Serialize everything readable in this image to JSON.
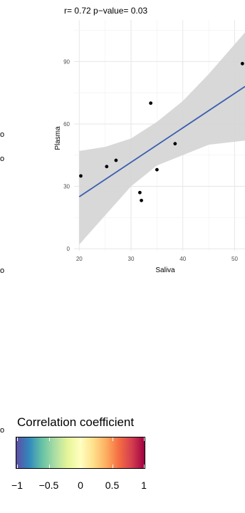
{
  "chart_data": {
    "type": "scatter",
    "title": "r= 0.72  p−value= 0.03",
    "xlabel": "Saliva",
    "ylabel": "Plasma",
    "xlim": [
      19,
      52
    ],
    "ylim": [
      -1,
      110
    ],
    "xticks": [
      20,
      30,
      40,
      50
    ],
    "yticks": [
      0,
      30,
      60,
      90
    ],
    "grid": true,
    "points": [
      {
        "x": 20.3,
        "y": 35
      },
      {
        "x": 25.3,
        "y": 39.5
      },
      {
        "x": 27.1,
        "y": 42.5
      },
      {
        "x": 31.7,
        "y": 27
      },
      {
        "x": 32.0,
        "y": 23.2
      },
      {
        "x": 33.8,
        "y": 70
      },
      {
        "x": 35.0,
        "y": 38
      },
      {
        "x": 38.5,
        "y": 50.5
      },
      {
        "x": 51.5,
        "y": 89
      }
    ],
    "fit_line": {
      "x": [
        20,
        52
      ],
      "y": [
        25,
        78
      ],
      "color": "#3a5fb0"
    },
    "confidence_band": {
      "x": [
        20,
        25,
        30,
        35,
        40,
        45,
        52
      ],
      "upper": [
        47,
        49,
        53,
        61,
        71,
        84,
        104
      ],
      "lower": [
        2,
        16,
        30,
        40,
        45,
        50,
        52
      ],
      "color": "#d4d4d4"
    },
    "point_color": "#000000"
  },
  "legend": {
    "title": "Correlation coefficient",
    "ticks": [
      "−1",
      "−0.5",
      "0",
      "0.5",
      "1"
    ],
    "tick_values": [
      -1,
      -0.5,
      0,
      0.5,
      1
    ],
    "range": [
      -1,
      1
    ],
    "palette": [
      "#5e4fa2",
      "#3288bd",
      "#66c2a5",
      "#abdda4",
      "#e6f598",
      "#ffffbf",
      "#fee08b",
      "#fdae61",
      "#f46d43",
      "#d53e4f",
      "#9e0142"
    ]
  },
  "left_fragments": [
    "o",
    "o",
    "o",
    "o"
  ]
}
